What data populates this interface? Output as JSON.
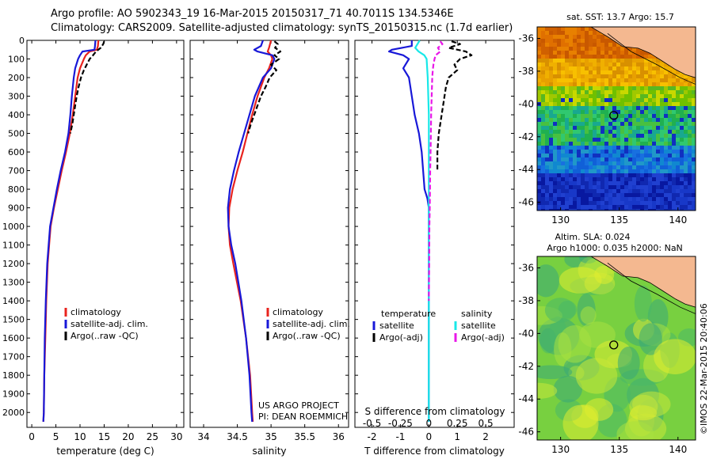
{
  "header": {
    "line1": "Argo profile: AO 5902343_19 16-Mar-2015 20150317_71 40.7011S 134.5346E",
    "line2": "Climatology: CARS2009. Satellite-adjusted climatology: synTS_20150315.nc (1.7d earlier)"
  },
  "colors": {
    "climatology": "#e8231e",
    "satellite": "#1818d8",
    "argo": "#000000",
    "sat_salinity": "#18e8e8",
    "argo_salinity": "#e818e8"
  },
  "depth_axis": {
    "ticks": [
      0,
      100,
      200,
      300,
      400,
      500,
      600,
      700,
      800,
      900,
      1000,
      1100,
      1200,
      1300,
      1400,
      1500,
      1600,
      1700,
      1800,
      1900,
      2000
    ],
    "lim": [
      0,
      2080
    ]
  },
  "chart_data": [
    {
      "type": "line",
      "xlabel": "temperature (deg C)",
      "xlim": [
        -1,
        31.5
      ],
      "xticks": [
        0,
        5,
        10,
        15,
        20,
        25,
        30
      ],
      "ylim": [
        2080,
        0
      ],
      "legend": {
        "placement": "bottom-left",
        "items": [
          "climatology",
          "satellite-adj. clim.",
          "Argo(..raw -QC)"
        ]
      },
      "series": [
        {
          "name": "climatology",
          "color": "#e8231e",
          "depth": [
            0,
            30,
            50,
            60,
            80,
            100,
            150,
            200,
            300,
            400,
            500,
            600,
            700,
            800,
            900,
            1000,
            1100,
            1200,
            1400,
            1600,
            1800,
            2000,
            2050
          ],
          "values": [
            13.8,
            13.7,
            13.5,
            12.0,
            11.2,
            10.8,
            10.0,
            9.5,
            9.0,
            8.5,
            7.9,
            7.1,
            6.2,
            5.4,
            4.6,
            3.9,
            3.6,
            3.3,
            3.0,
            2.8,
            2.6,
            2.5,
            2.4
          ]
        },
        {
          "name": "satellite-adj. clim.",
          "color": "#1818d8",
          "depth": [
            0,
            30,
            50,
            60,
            80,
            100,
            150,
            200,
            300,
            400,
            500,
            600,
            700,
            800,
            900,
            1000,
            1100,
            1200,
            1400,
            1600,
            1800,
            2000,
            2050
          ],
          "values": [
            13.2,
            13.1,
            13.0,
            10.5,
            10.0,
            9.6,
            9.0,
            8.7,
            8.3,
            8.0,
            7.6,
            6.9,
            6.0,
            5.2,
            4.5,
            3.8,
            3.5,
            3.2,
            2.9,
            2.7,
            2.6,
            2.5,
            2.4
          ]
        },
        {
          "name": "Argo(..raw -QC)",
          "color": "#000000",
          "dash": true,
          "depth": [
            5,
            20,
            40,
            60,
            80,
            100,
            130,
            160,
            200,
            250,
            300,
            350,
            400,
            450,
            500
          ],
          "values": [
            15.0,
            14.8,
            14.3,
            13.3,
            12.7,
            12.0,
            11.4,
            10.8,
            10.2,
            9.7,
            9.3,
            9.0,
            8.7,
            8.4,
            8.0
          ]
        }
      ],
      "annotation": []
    },
    {
      "type": "line",
      "xlabel": "salinity",
      "xlim": [
        33.8,
        36.15
      ],
      "xticks": [
        34,
        34.5,
        35,
        35.5,
        36
      ],
      "ylim": [
        2080,
        0
      ],
      "legend": {
        "placement": "bottom-right",
        "items": [
          "climatology",
          "satellite-adj. clim.",
          "Argo(..raw -QC)"
        ]
      },
      "series": [
        {
          "name": "climatology",
          "color": "#e8231e",
          "depth": [
            0,
            40,
            60,
            80,
            100,
            150,
            200,
            300,
            400,
            500,
            600,
            700,
            800,
            900,
            1000,
            1100,
            1200,
            1400,
            1600,
            1800,
            2000,
            2050
          ],
          "values": [
            35.0,
            34.97,
            34.95,
            35.0,
            35.02,
            34.97,
            34.9,
            34.8,
            34.72,
            34.65,
            34.58,
            34.5,
            34.43,
            34.38,
            34.37,
            34.39,
            34.44,
            34.55,
            34.63,
            34.69,
            34.72,
            34.73
          ]
        },
        {
          "name": "satellite-adj. clim.",
          "color": "#1818d8",
          "depth": [
            0,
            30,
            50,
            60,
            80,
            100,
            150,
            200,
            300,
            400,
            500,
            600,
            700,
            800,
            900,
            1000,
            1100,
            1200,
            1400,
            1600,
            1800,
            2000,
            2050
          ],
          "values": [
            34.88,
            34.85,
            34.75,
            34.8,
            35.02,
            35.05,
            35.0,
            34.88,
            34.76,
            34.68,
            34.6,
            34.52,
            34.45,
            34.39,
            34.36,
            34.37,
            34.41,
            34.47,
            34.56,
            34.63,
            34.68,
            34.71,
            34.72
          ]
        },
        {
          "name": "Argo(..raw -QC)",
          "color": "#000000",
          "dash": true,
          "depth": [
            5,
            20,
            40,
            60,
            80,
            100,
            130,
            160,
            200,
            250,
            300,
            350,
            400,
            450,
            500
          ],
          "values": [
            35.05,
            35.1,
            35.06,
            35.14,
            35.05,
            35.12,
            35.0,
            35.08,
            34.98,
            34.92,
            34.85,
            34.8,
            34.75,
            34.7,
            34.66
          ]
        }
      ],
      "annotation": [
        "US ARGO PROJECT",
        "PI: DEAN ROEMMICH"
      ]
    },
    {
      "type": "line",
      "xlabel": "T difference from climatology",
      "xlabel_top": "S difference from climatology",
      "xlim": [
        -2.6,
        3.0
      ],
      "xticks": [
        -2,
        -1,
        0,
        1,
        2
      ],
      "xticks_s": [
        "-0.5",
        "-0.25",
        "0",
        "0.25",
        "0.5"
      ],
      "ylim": [
        2080,
        0
      ],
      "legend": {
        "placement": "bottom",
        "headers": [
          "temperature",
          "salinity"
        ],
        "items_left": [
          "satellite",
          "Argo(-adj)"
        ],
        "items_right": [
          "satellite",
          "Argo(-adj)"
        ]
      },
      "series": [
        {
          "name": "temperature satellite",
          "color": "#1818d8",
          "depth": [
            0,
            30,
            50,
            60,
            80,
            100,
            150,
            200,
            300,
            400,
            500,
            600,
            700,
            800,
            850,
            900,
            1000,
            1200,
            1500,
            2050
          ],
          "values": [
            -0.6,
            -0.6,
            -1.3,
            -1.4,
            -0.9,
            -0.7,
            -0.9,
            -0.7,
            -0.6,
            -0.5,
            -0.35,
            -0.25,
            -0.2,
            -0.15,
            -0.05,
            0,
            0,
            0,
            0,
            0
          ]
        },
        {
          "name": "temperature Argo(-adj)",
          "color": "#000000",
          "dash": true,
          "depth": [
            5,
            20,
            40,
            60,
            80,
            100,
            130,
            160,
            200,
            250,
            300,
            350,
            400,
            450,
            500,
            600,
            700
          ],
          "values": [
            0.8,
            1.1,
            0.7,
            1.3,
            1.5,
            1.1,
            0.9,
            1.0,
            0.7,
            0.6,
            0.55,
            0.5,
            0.45,
            0.4,
            0.35,
            0.3,
            0.3
          ]
        },
        {
          "name": "salinity satellite",
          "color": "#18e8e8",
          "depth": [
            0,
            40,
            60,
            80,
            100,
            200,
            300,
            400,
            500,
            600,
            700,
            800,
            900,
            1000,
            1500,
            2050
          ],
          "values": [
            -0.08,
            -0.12,
            -0.09,
            -0.04,
            -0.02,
            -0.01,
            -0.005,
            0.0,
            0.0,
            0.0,
            0.0,
            0.0,
            0.0,
            0.0,
            0.0,
            0.0
          ]
        },
        {
          "name": "salinity Argo(-adj)",
          "color": "#e818e8",
          "dash": true,
          "depth": [
            5,
            20,
            40,
            60,
            80,
            100,
            130,
            160,
            200,
            300,
            400,
            500,
            600,
            700,
            800,
            900,
            1000,
            1200,
            1400
          ],
          "values": [
            0.1,
            0.12,
            0.08,
            0.1,
            0.06,
            0.05,
            0.04,
            0.035,
            0.03,
            0.025,
            0.02,
            0.018,
            0.015,
            0.012,
            0.01,
            0.008,
            0.005,
            0.003,
            0.0
          ]
        }
      ]
    },
    {
      "type": "heatmap",
      "title": "sat. SST: 13.7  Argo: 15.7",
      "xticks": [
        130,
        135,
        140
      ],
      "yticks": [
        -36,
        -38,
        -40,
        -42,
        -44,
        -46
      ],
      "xlim": [
        128,
        141.5
      ],
      "ylim": [
        -46.5,
        -35.3
      ],
      "marker": {
        "lon": 134.53,
        "lat": -40.7
      }
    },
    {
      "type": "heatmap",
      "title_line1": "Altim. SLA: 0.024",
      "title_line2": "Argo h1000: 0.035 h2000: NaN",
      "xticks": [
        130,
        135,
        140
      ],
      "yticks": [
        -36,
        -38,
        -40,
        -42,
        -44,
        -46
      ],
      "xlim": [
        128,
        141.5
      ],
      "ylim": [
        -46.5,
        -35.3
      ],
      "marker": {
        "lon": 134.53,
        "lat": -40.7
      }
    }
  ],
  "credit": "©IMOS 22-Mar-2015 20:40:06"
}
